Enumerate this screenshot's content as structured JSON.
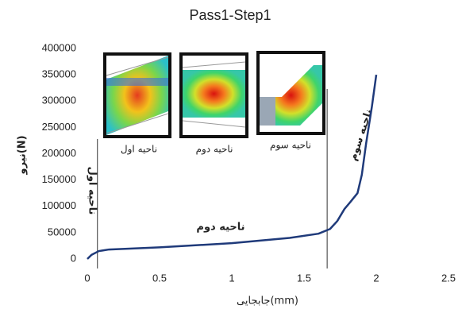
{
  "chart_data": {
    "type": "line",
    "title": "Pass1-Step1",
    "x_label": "جابجایی(mm)",
    "y_label": "نیرو(N)",
    "x": [
      0,
      0.03,
      0.08,
      0.15,
      0.5,
      1,
      1.4,
      1.6,
      1.68,
      1.73,
      1.78,
      1.82,
      1.87,
      1.9,
      1.93,
      1.97,
      2.0
    ],
    "series": [
      {
        "color": "#1f3a7a",
        "values": [
          0,
          8000,
          15000,
          18000,
          22000,
          30000,
          40000,
          48000,
          57000,
          72000,
          95000,
          108000,
          125000,
          160000,
          220000,
          290000,
          350000
        ]
      }
    ],
    "xlim": [
      0,
      2.5
    ],
    "xticks": [
      0,
      0.5,
      1,
      1.5,
      2,
      2.5
    ],
    "ylim": [
      0,
      400000
    ],
    "yticks": [
      0,
      50000,
      100000,
      150000,
      200000,
      250000,
      300000,
      350000,
      400000
    ],
    "grid": false,
    "region_lines": [
      0.07,
      1.66
    ],
    "annotations": [
      "ناحیه اول",
      "ناحیه دوم",
      "ناحیه سوم"
    ],
    "inset_captions": [
      "ناحیه اول",
      "ناحیه دوم",
      "ناحیه سوم"
    ]
  }
}
